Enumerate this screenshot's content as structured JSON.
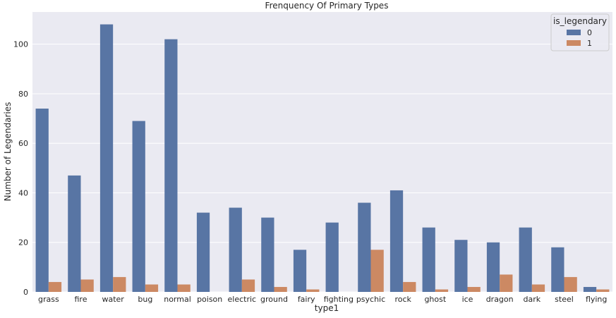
{
  "chart_data": {
    "type": "bar",
    "title": "Frenquency Of Primary Types",
    "xlabel": "type1",
    "ylabel": "Number of Legendaries",
    "categories": [
      "grass",
      "fire",
      "water",
      "bug",
      "normal",
      "poison",
      "electric",
      "ground",
      "fairy",
      "fighting",
      "psychic",
      "rock",
      "ghost",
      "ice",
      "dragon",
      "dark",
      "steel",
      "flying"
    ],
    "series": [
      {
        "name": "0",
        "color": "#5875a4",
        "values": [
          74,
          47,
          108,
          69,
          102,
          32,
          34,
          30,
          17,
          28,
          36,
          41,
          26,
          21,
          20,
          26,
          18,
          2
        ]
      },
      {
        "name": "1",
        "color": "#cc8963",
        "values": [
          4,
          5,
          6,
          3,
          3,
          0,
          5,
          2,
          1,
          0,
          17,
          4,
          1,
          2,
          7,
          3,
          6,
          1
        ]
      }
    ],
    "ylim": [
      0,
      113
    ],
    "yticks": [
      0,
      20,
      40,
      60,
      80,
      100
    ],
    "grid": true,
    "background": "#eaeaf2",
    "legend": {
      "title": "is_legendary",
      "position": "top-right"
    }
  }
}
